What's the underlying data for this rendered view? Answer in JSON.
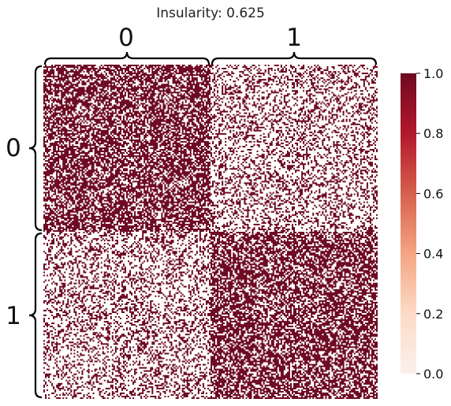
{
  "chart_data": {
    "type": "heatmap",
    "title": "Insularity: 0.625",
    "blocks": {
      "labels": [
        "0",
        "1"
      ],
      "grid_rows_per_block": 105,
      "grid_cols_per_block": 105,
      "density": [
        [
          0.66,
          0.34
        ],
        [
          0.34,
          0.66
        ]
      ]
    },
    "colormap": "RdBu_r (white to dark red)",
    "colors": {
      "low": "#fbf0ec",
      "high": "#6e0a21"
    },
    "colorbar": {
      "ticks": [
        "0.0",
        "0.2",
        "0.4",
        "0.6",
        "0.8",
        "1.0"
      ],
      "range": [
        0,
        1
      ]
    },
    "grid": false,
    "legend": "colorbar-right"
  }
}
